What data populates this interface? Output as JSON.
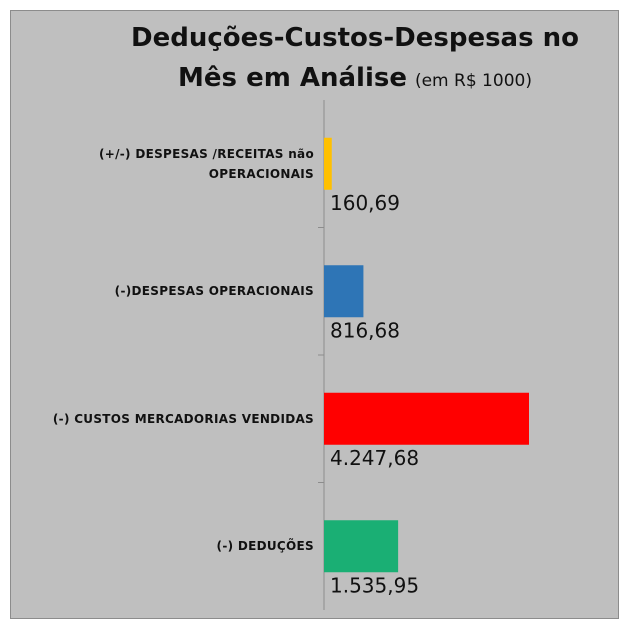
{
  "chart_data": {
    "type": "hbar",
    "title": "Deduções-Custos-Despesas no",
    "title_line2": "Mês em Análise",
    "subtitle": "(em R$ 1000)",
    "categories": [
      "(+/-) DESPESAS /RECEITAS não OPERACIONAIS",
      "(-)DESPESAS OPERACIONAIS",
      "(-) CUSTOS MERCADORIAS VENDIDAS",
      "(-) DEDUÇÕES"
    ],
    "values": [
      160.69,
      816.68,
      4247.68,
      1535.95
    ],
    "value_labels": [
      "160,69",
      "816,68",
      "4.247,68",
      "1.535,95"
    ],
    "colors": [
      "#ffc000",
      "#2e75b6",
      "#ff0000",
      "#1aaf74"
    ]
  }
}
